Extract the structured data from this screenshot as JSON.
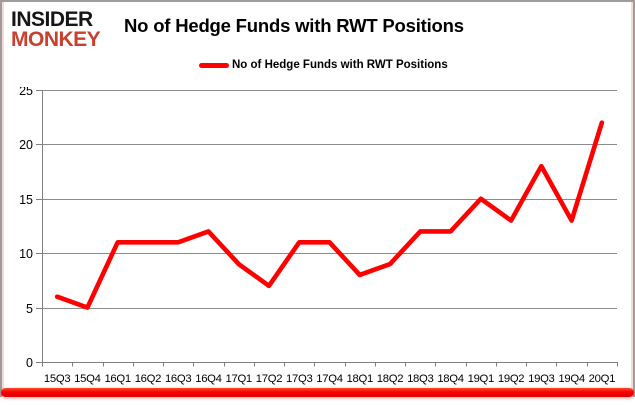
{
  "logo": {
    "line1": "INSIDER",
    "line2": "MONKEY",
    "line1_color": "#161616",
    "line2_color": "#c8402f"
  },
  "header": {
    "title": "No of Hedge Funds with RWT Positions"
  },
  "legend": {
    "label": "No of Hedge Funds with RWT Positions",
    "swatch_color": "#ff0000"
  },
  "chart_data": {
    "type": "line",
    "title": "No of Hedge Funds with RWT Positions",
    "categories": [
      "15Q3",
      "15Q4",
      "16Q1",
      "16Q2",
      "16Q3",
      "16Q4",
      "17Q1",
      "17Q2",
      "17Q3",
      "17Q4",
      "18Q1",
      "18Q2",
      "18Q3",
      "18Q4",
      "19Q1",
      "19Q2",
      "19Q3",
      "19Q4",
      "20Q1"
    ],
    "series": [
      {
        "name": "No of Hedge Funds with RWT Positions",
        "color": "#ff0000",
        "values": [
          6,
          5,
          11,
          11,
          11,
          12,
          9,
          7,
          11,
          11,
          8,
          9,
          12,
          12,
          15,
          13,
          18,
          13,
          22
        ]
      }
    ],
    "xlabel": "",
    "ylabel": "",
    "ylim": [
      0,
      25
    ],
    "yticks": [
      0,
      5,
      10,
      15,
      20,
      25
    ],
    "grid": true,
    "legend_position": "top-center",
    "axis_color": "#7f7f7f",
    "gridline_color": "#8c8c8c"
  },
  "footer": {
    "accent_bar_color": "#ff0000"
  }
}
